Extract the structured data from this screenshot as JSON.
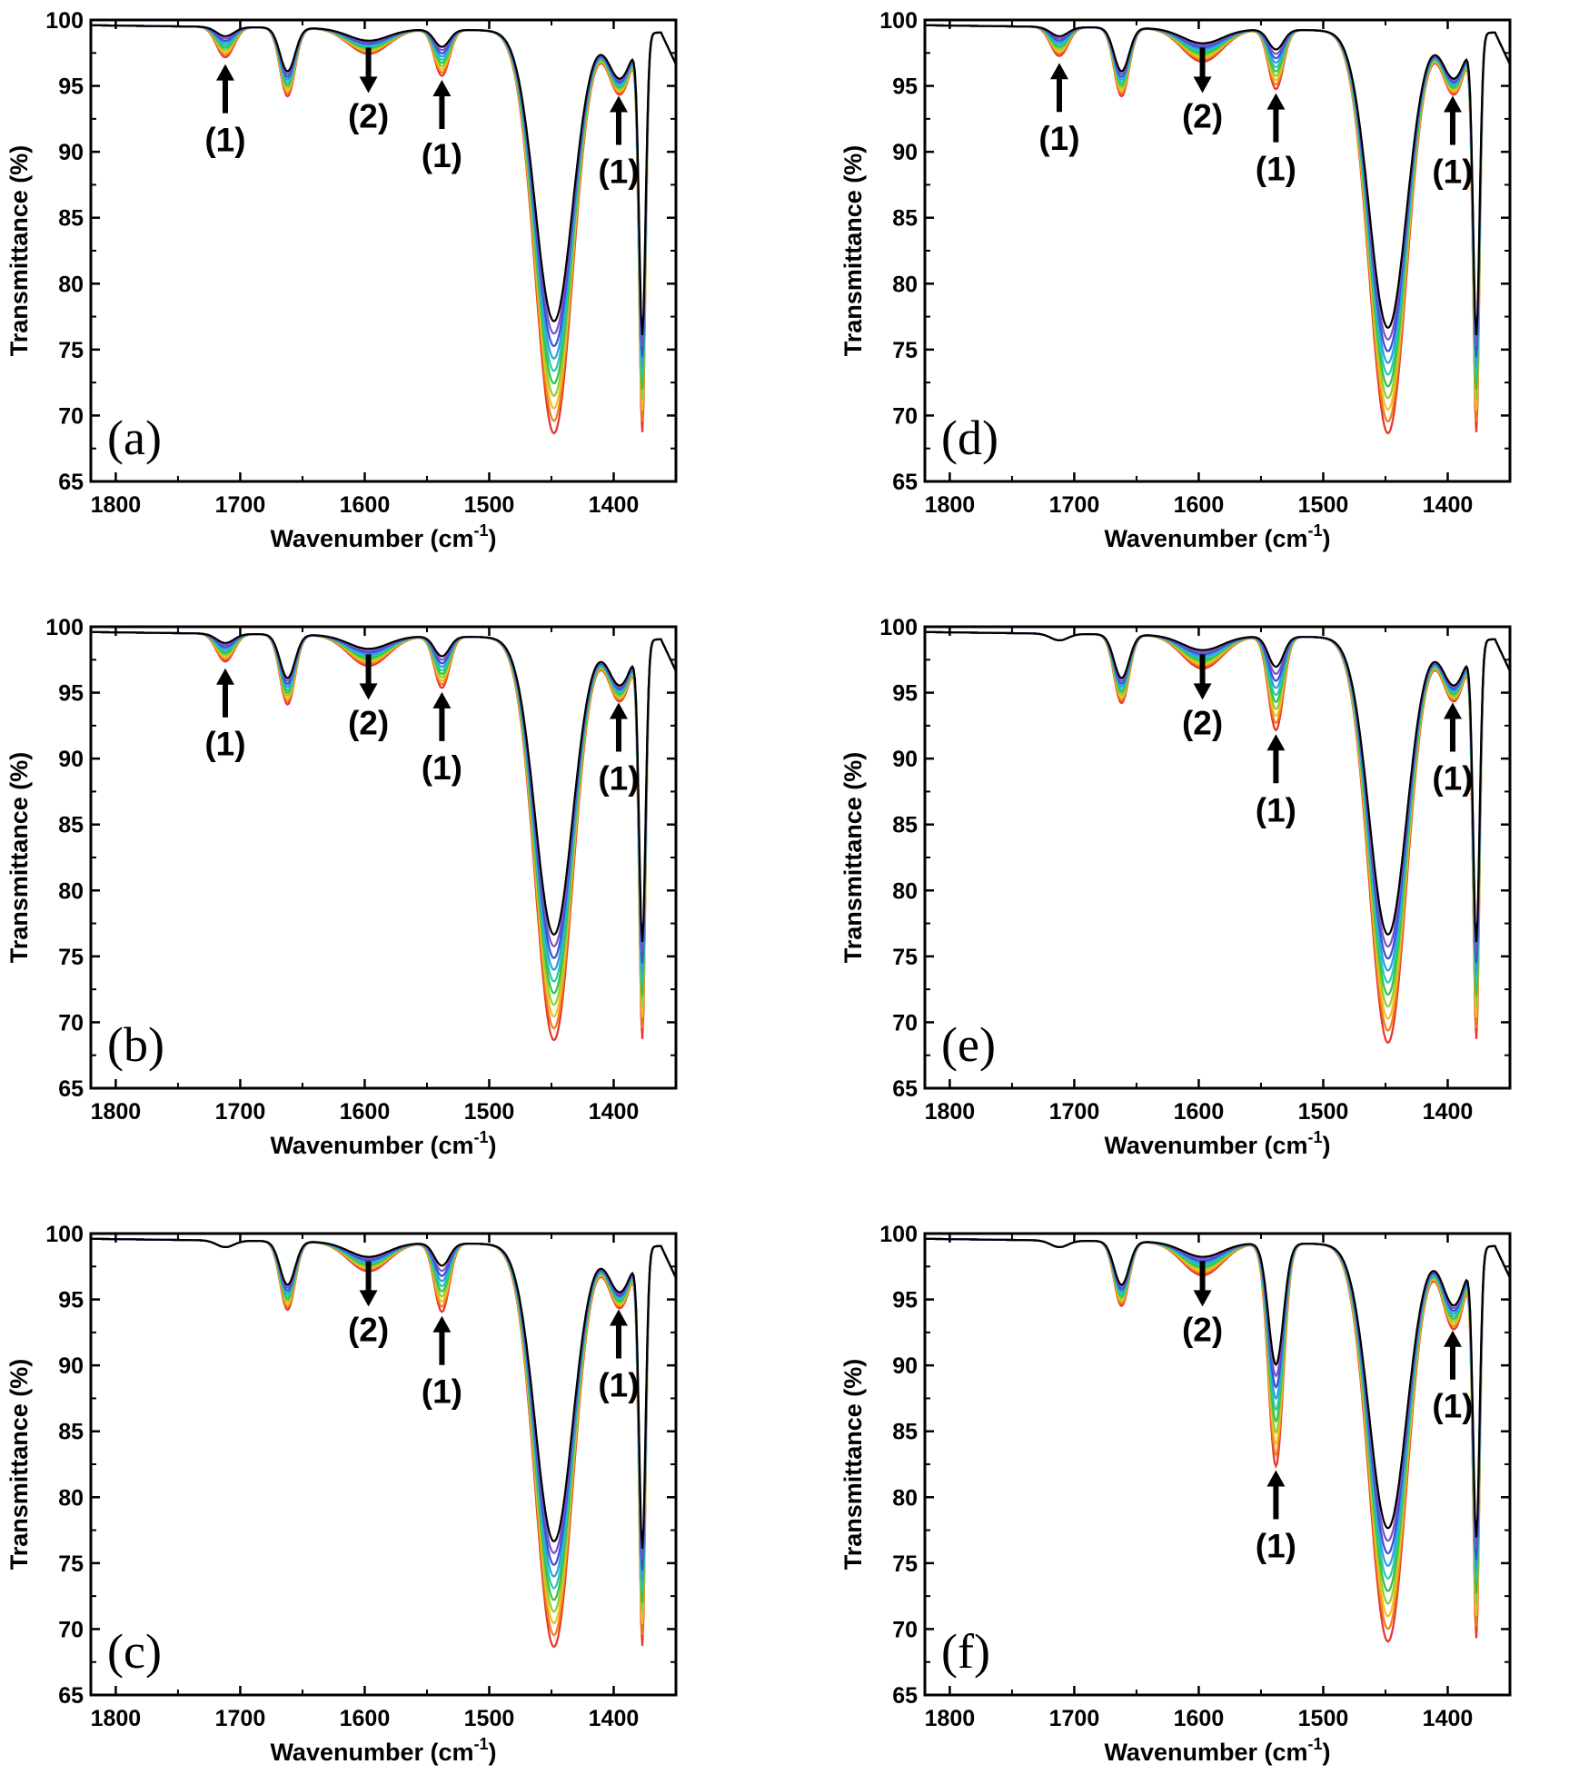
{
  "colors": {
    "series": [
      "#e8332a",
      "#f07e1b",
      "#f2c01e",
      "#8fd032",
      "#34c24a",
      "#29c7b3",
      "#2ea0e0",
      "#3b4fd8",
      "#7a53c8",
      "#000000"
    ]
  },
  "chart_data": [
    {
      "type": "line",
      "panel_label": "(a)",
      "xlabel": "Wavenumber",
      "xlabel_unit": "(cm",
      "xlabel_sup": "-1",
      "xlabel_close": ")",
      "ylabel": "Transmittance (%)",
      "xlim": [
        1820,
        1350
      ],
      "ylim": [
        65,
        100
      ],
      "xticks": [
        "1800",
        "1700",
        "1600",
        "1500",
        "1400"
      ],
      "yticks": [
        "65",
        "70",
        "75",
        "80",
        "85",
        "90",
        "95",
        "100"
      ],
      "peaks": {
        "p1712": [
          97.2,
          98.8
        ],
        "p1662": [
          94.3,
          96.2
        ],
        "p1597": [
          97.6,
          98.6
        ],
        "p1538": [
          96.0,
          98.2
        ],
        "p1448": [
          69.0,
          77.5
        ],
        "p1395": [
          94.8,
          96.0
        ],
        "p1377": [
          69.8,
          77.0
        ]
      },
      "annotations": [
        {
          "label": "(1)",
          "x": 1712,
          "dir": "up"
        },
        {
          "label": "(2)",
          "x": 1597,
          "dir": "down"
        },
        {
          "label": "(1)",
          "x": 1538,
          "dir": "up"
        },
        {
          "label": "(1)",
          "x": 1396,
          "dir": "up"
        }
      ]
    },
    {
      "type": "line",
      "panel_label": "(d)",
      "xlabel": "Wavenumber",
      "xlabel_unit": "(cm",
      "xlabel_sup": "-1",
      "xlabel_close": ")",
      "ylabel": "Transmittance (%)",
      "xlim": [
        1820,
        1350
      ],
      "ylim": [
        65,
        100
      ],
      "xticks": [
        "1800",
        "1700",
        "1600",
        "1500",
        "1400"
      ],
      "yticks": [
        "65",
        "70",
        "75",
        "80",
        "85",
        "90",
        "95",
        "100"
      ],
      "peaks": {
        "p1712": [
          97.3,
          98.8
        ],
        "p1662": [
          94.3,
          96.2
        ],
        "p1597": [
          97.0,
          98.4
        ],
        "p1538": [
          95.0,
          98.0
        ],
        "p1448": [
          69.0,
          77.0
        ],
        "p1395": [
          94.8,
          96.0
        ],
        "p1377": [
          69.8,
          77.0
        ]
      },
      "annotations": [
        {
          "label": "(1)",
          "x": 1712,
          "dir": "up"
        },
        {
          "label": "(2)",
          "x": 1597,
          "dir": "down"
        },
        {
          "label": "(1)",
          "x": 1538,
          "dir": "up"
        },
        {
          "label": "(1)",
          "x": 1396,
          "dir": "up"
        }
      ]
    },
    {
      "type": "line",
      "panel_label": "(b)",
      "xlabel": "Wavenumber",
      "xlabel_unit": "(cm",
      "xlabel_sup": "-1",
      "xlabel_close": ")",
      "ylabel": "Transmittance (%)",
      "xlim": [
        1820,
        1350
      ],
      "ylim": [
        65,
        100
      ],
      "xticks": [
        "1800",
        "1700",
        "1600",
        "1500",
        "1400"
      ],
      "yticks": [
        "65",
        "70",
        "75",
        "80",
        "85",
        "90",
        "95",
        "100"
      ],
      "peaks": {
        "p1712": [
          97.4,
          98.8
        ],
        "p1662": [
          94.2,
          96.2
        ],
        "p1597": [
          97.2,
          98.5
        ],
        "p1538": [
          95.6,
          98.0
        ],
        "p1448": [
          69.0,
          77.0
        ],
        "p1395": [
          94.8,
          96.0
        ],
        "p1377": [
          69.8,
          77.0
        ]
      },
      "annotations": [
        {
          "label": "(1)",
          "x": 1712,
          "dir": "up"
        },
        {
          "label": "(2)",
          "x": 1597,
          "dir": "down"
        },
        {
          "label": "(1)",
          "x": 1538,
          "dir": "up"
        },
        {
          "label": "(1)",
          "x": 1396,
          "dir": "up"
        }
      ]
    },
    {
      "type": "line",
      "panel_label": "(e)",
      "xlabel": "Wavenumber",
      "xlabel_unit": "(cm",
      "xlabel_sup": "-1",
      "xlabel_close": ")",
      "ylabel": "Transmittance (%)",
      "xlim": [
        1820,
        1350
      ],
      "ylim": [
        65,
        100
      ],
      "xticks": [
        "1800",
        "1700",
        "1600",
        "1500",
        "1400"
      ],
      "yticks": [
        "65",
        "70",
        "75",
        "80",
        "85",
        "90",
        "95",
        "100"
      ],
      "peaks": {
        "p1712": [
          99.0,
          99.0
        ],
        "p1662": [
          94.3,
          96.2
        ],
        "p1597": [
          97.0,
          98.4
        ],
        "p1538": [
          92.4,
          97.2
        ],
        "p1448": [
          68.8,
          77.0
        ],
        "p1395": [
          94.8,
          96.0
        ],
        "p1377": [
          69.8,
          77.0
        ]
      },
      "annotations": [
        {
          "label": "(2)",
          "x": 1597,
          "dir": "down"
        },
        {
          "label": "(1)",
          "x": 1538,
          "dir": "up"
        },
        {
          "label": "(1)",
          "x": 1396,
          "dir": "up"
        }
      ]
    },
    {
      "type": "line",
      "panel_label": "(c)",
      "xlabel": "Wavenumber",
      "xlabel_unit": "(cm",
      "xlabel_sup": "-1",
      "xlabel_close": ")",
      "ylabel": "Transmittance (%)",
      "xlim": [
        1820,
        1350
      ],
      "ylim": [
        65,
        100
      ],
      "xticks": [
        "1800",
        "1700",
        "1600",
        "1500",
        "1400"
      ],
      "yticks": [
        "65",
        "70",
        "75",
        "80",
        "85",
        "90",
        "95",
        "100"
      ],
      "peaks": {
        "p1712": [
          99.0,
          99.0
        ],
        "p1662": [
          94.3,
          96.2
        ],
        "p1597": [
          97.3,
          98.4
        ],
        "p1538": [
          94.3,
          97.8
        ],
        "p1448": [
          69.0,
          77.0
        ],
        "p1395": [
          94.8,
          96.0
        ],
        "p1377": [
          69.8,
          77.0
        ]
      },
      "annotations": [
        {
          "label": "(2)",
          "x": 1597,
          "dir": "down"
        },
        {
          "label": "(1)",
          "x": 1538,
          "dir": "up"
        },
        {
          "label": "(1)",
          "x": 1396,
          "dir": "up"
        }
      ]
    },
    {
      "type": "line",
      "panel_label": "(f)",
      "xlabel": "Wavenumber",
      "xlabel_unit": "(cm",
      "xlabel_sup": "-1",
      "xlabel_close": ")",
      "ylabel": "Transmittance (%)",
      "xlim": [
        1820,
        1350
      ],
      "ylim": [
        65,
        100
      ],
      "xticks": [
        "1800",
        "1700",
        "1600",
        "1500",
        "1400"
      ],
      "yticks": [
        "65",
        "70",
        "75",
        "80",
        "85",
        "90",
        "95",
        "100"
      ],
      "peaks": {
        "p1712": [
          99.0,
          99.0
        ],
        "p1662": [
          94.6,
          96.2
        ],
        "p1597": [
          97.0,
          98.4
        ],
        "p1538": [
          82.6,
          90.3
        ],
        "p1448": [
          69.4,
          78.0
        ],
        "p1395": [
          93.2,
          95.0
        ],
        "p1377": [
          70.6,
          78.0
        ]
      },
      "annotations": [
        {
          "label": "(2)",
          "x": 1597,
          "dir": "down"
        },
        {
          "label": "(1)",
          "x": 1538,
          "dir": "up"
        },
        {
          "label": "(1)",
          "x": 1396,
          "dir": "up"
        }
      ]
    }
  ]
}
